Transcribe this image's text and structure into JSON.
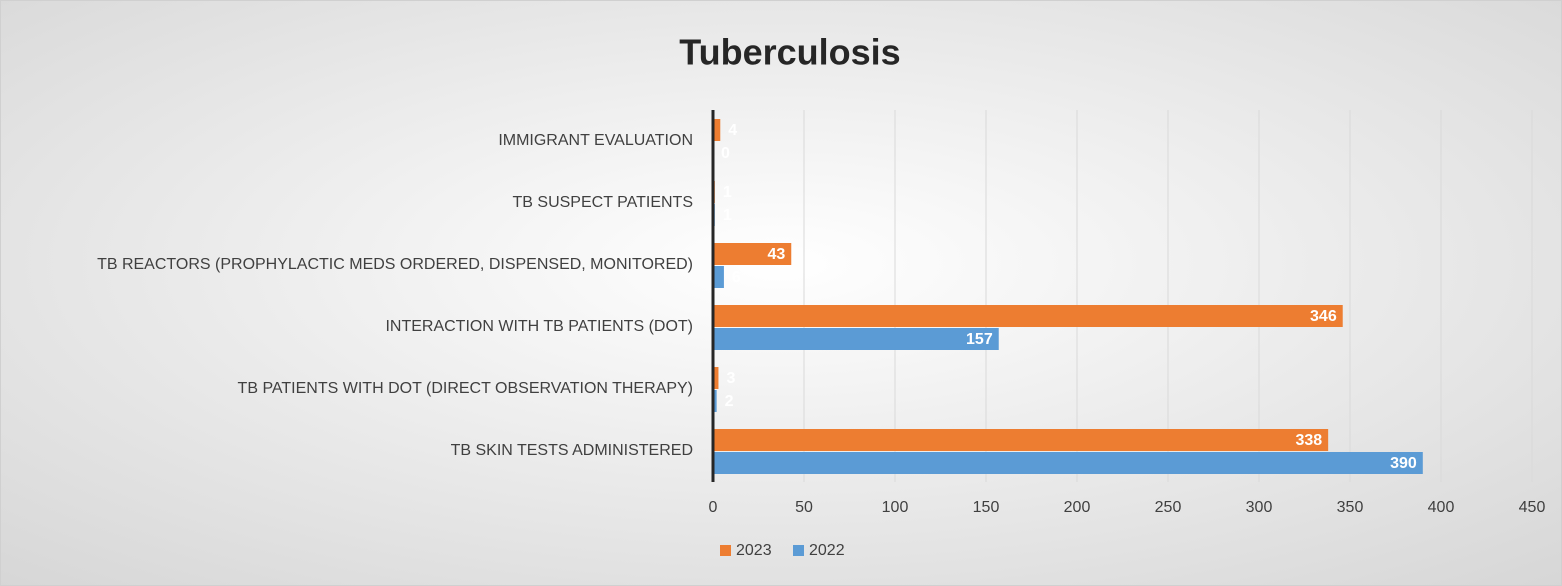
{
  "chart_data": {
    "type": "hbar",
    "title": "Tuberculosis",
    "categories": [
      "IMMIGRANT EVALUATION",
      "TB SUSPECT PATIENTS",
      "TB REACTORS (PROPHYLACTIC MEDS ORDERED, DISPENSED, MONITORED)",
      "INTERACTION WITH TB PATIENTS (DOT)",
      "TB PATIENTS WITH DOT (DIRECT OBSERVATION THERAPY)",
      "TB SKIN TESTS ADMINISTERED"
    ],
    "series": [
      {
        "name": "2023",
        "color": "#ed7d31",
        "values": [
          4,
          1,
          43,
          346,
          3,
          338
        ]
      },
      {
        "name": "2022",
        "color": "#5b9bd5",
        "values": [
          0,
          1,
          6,
          157,
          2,
          390
        ]
      }
    ],
    "xlim": [
      0,
      450
    ],
    "xticks": [
      0,
      50,
      100,
      150,
      200,
      250,
      300,
      350,
      400,
      450
    ],
    "grid": true,
    "legend": "bottom"
  }
}
